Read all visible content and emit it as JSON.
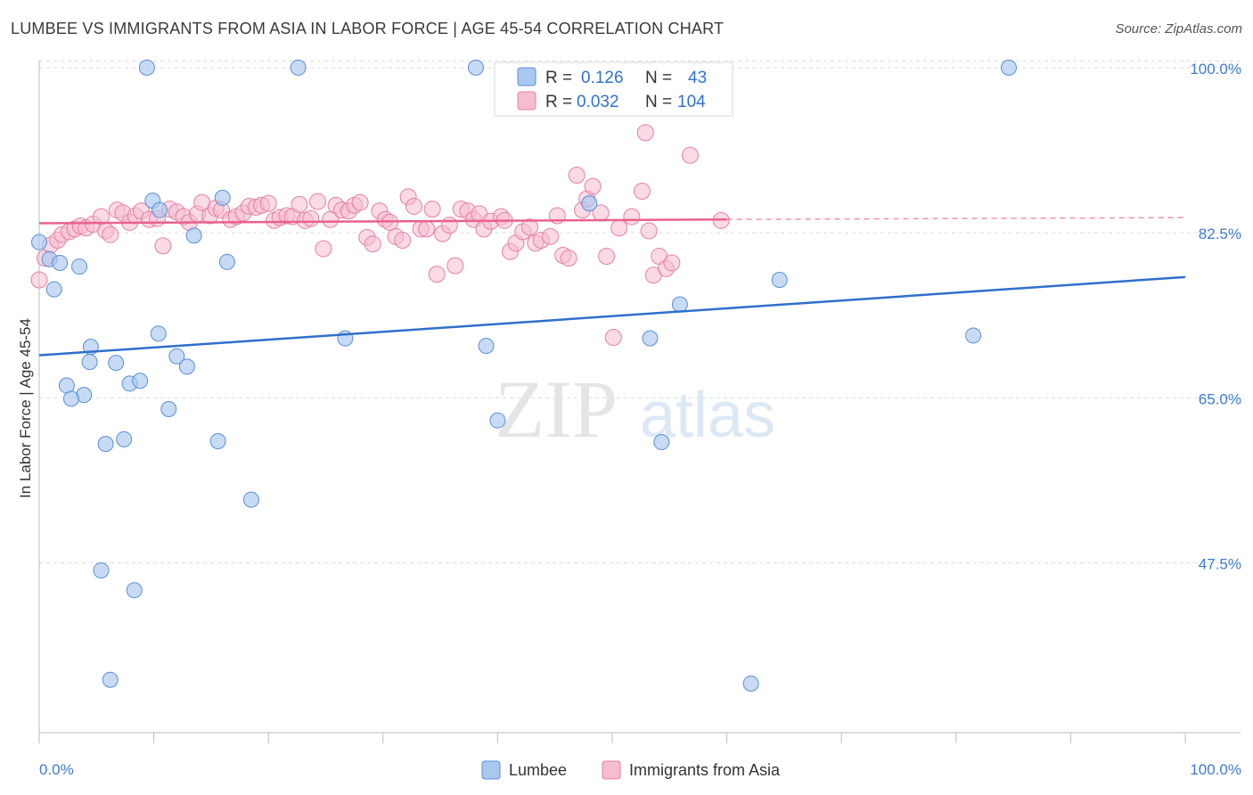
{
  "title": "LUMBEE VS IMMIGRANTS FROM ASIA IN LABOR FORCE | AGE 45-54 CORRELATION CHART",
  "source": "Source: ZipAtlas.com",
  "watermark": {
    "zip": "ZIP",
    "atlas": "atlas"
  },
  "colors": {
    "lumbee_fill": "#a9c8f0",
    "lumbee_stroke": "#5b8fd6",
    "lumbee_line": "#2f6fcc",
    "asia_fill": "#f6bcd0",
    "asia_stroke": "#e57fa3",
    "asia_line": "#e8628e",
    "grid": "#d9dde3",
    "axis_text": "#3d7bd0"
  },
  "legend": {
    "r_label": "R =",
    "n_label": "N =",
    "rows": [
      {
        "r": "0.126",
        "n": "43"
      },
      {
        "r": "0.032",
        "n": "104"
      }
    ]
  },
  "chart_data": {
    "type": "scatter",
    "xlabel": "",
    "ylabel": "In Labor Force | Age 45-54",
    "xlim": [
      0,
      100
    ],
    "ylim": [
      29.5,
      101.5
    ],
    "x_tick_labels": [
      "0.0%",
      "100.0%"
    ],
    "y_ticks": [
      47.5,
      65.0,
      82.5,
      100.0
    ],
    "y_tick_labels": [
      "47.5%",
      "65.0%",
      "82.5%",
      "100.0%"
    ],
    "series": [
      {
        "name": "Lumbee",
        "trend": {
          "x": [
            0,
            100
          ],
          "y": [
            69.5,
            77.8
          ]
        },
        "points": [
          [
            0.0,
            81.5
          ],
          [
            0.9,
            79.7
          ],
          [
            1.8,
            79.3
          ],
          [
            1.3,
            76.5
          ],
          [
            3.5,
            78.9
          ],
          [
            9.4,
            100.0
          ],
          [
            22.6,
            100.0
          ],
          [
            38.1,
            100.0
          ],
          [
            84.6,
            100.0
          ],
          [
            9.9,
            85.9
          ],
          [
            10.5,
            84.9
          ],
          [
            16.0,
            86.2
          ],
          [
            13.5,
            82.2
          ],
          [
            16.4,
            79.4
          ],
          [
            48.0,
            85.6
          ],
          [
            64.6,
            77.5
          ],
          [
            55.9,
            74.9
          ],
          [
            10.4,
            71.8
          ],
          [
            4.5,
            70.4
          ],
          [
            4.4,
            68.8
          ],
          [
            6.7,
            68.7
          ],
          [
            12.0,
            69.4
          ],
          [
            12.9,
            68.3
          ],
          [
            26.7,
            71.3
          ],
          [
            2.4,
            66.3
          ],
          [
            7.9,
            66.5
          ],
          [
            8.8,
            66.8
          ],
          [
            3.9,
            65.3
          ],
          [
            2.8,
            64.9
          ],
          [
            11.3,
            63.8
          ],
          [
            40.0,
            62.6
          ],
          [
            5.8,
            60.1
          ],
          [
            7.4,
            60.6
          ],
          [
            15.6,
            60.4
          ],
          [
            54.3,
            60.3
          ],
          [
            53.3,
            71.3
          ],
          [
            39.0,
            70.5
          ],
          [
            81.5,
            71.6
          ],
          [
            18.5,
            54.2
          ],
          [
            5.4,
            46.7
          ],
          [
            8.3,
            44.6
          ],
          [
            6.2,
            35.1
          ],
          [
            62.1,
            34.7
          ]
        ]
      },
      {
        "name": "Immigrants from Asia",
        "trend": {
          "x": [
            0,
            60
          ],
          "y": [
            83.5,
            83.9
          ]
        },
        "trend_dashed": {
          "x": [
            60,
            100
          ],
          "y": [
            83.9,
            84.1
          ]
        },
        "points": [
          [
            0.0,
            77.5
          ],
          [
            0.5,
            79.8
          ],
          [
            1.0,
            81.2
          ],
          [
            1.6,
            81.7
          ],
          [
            2.0,
            82.3
          ],
          [
            2.6,
            82.6
          ],
          [
            3.1,
            82.9
          ],
          [
            3.6,
            83.2
          ],
          [
            4.1,
            83.0
          ],
          [
            4.7,
            83.4
          ],
          [
            5.4,
            84.2
          ],
          [
            5.8,
            82.7
          ],
          [
            6.2,
            82.3
          ],
          [
            6.8,
            84.9
          ],
          [
            7.3,
            84.6
          ],
          [
            7.9,
            83.6
          ],
          [
            8.4,
            84.3
          ],
          [
            8.9,
            84.8
          ],
          [
            9.6,
            83.9
          ],
          [
            10.3,
            84.0
          ],
          [
            10.8,
            81.1
          ],
          [
            11.4,
            85.0
          ],
          [
            12.0,
            84.7
          ],
          [
            12.6,
            84.2
          ],
          [
            13.1,
            83.6
          ],
          [
            13.8,
            84.5
          ],
          [
            14.2,
            85.7
          ],
          [
            14.9,
            84.3
          ],
          [
            15.4,
            85.1
          ],
          [
            15.9,
            84.9
          ],
          [
            16.7,
            83.9
          ],
          [
            17.2,
            84.2
          ],
          [
            17.8,
            84.6
          ],
          [
            18.3,
            85.3
          ],
          [
            18.9,
            85.2
          ],
          [
            19.4,
            85.4
          ],
          [
            20.0,
            85.6
          ],
          [
            20.5,
            83.8
          ],
          [
            21.0,
            84.1
          ],
          [
            21.6,
            84.3
          ],
          [
            22.1,
            84.2
          ],
          [
            22.7,
            85.5
          ],
          [
            23.2,
            83.8
          ],
          [
            23.7,
            84.0
          ],
          [
            24.3,
            85.8
          ],
          [
            24.8,
            80.8
          ],
          [
            25.4,
            83.9
          ],
          [
            25.9,
            85.4
          ],
          [
            26.4,
            84.9
          ],
          [
            27.0,
            84.8
          ],
          [
            27.5,
            85.4
          ],
          [
            28.0,
            85.7
          ],
          [
            28.6,
            82.0
          ],
          [
            29.1,
            81.3
          ],
          [
            29.7,
            84.8
          ],
          [
            30.2,
            83.9
          ],
          [
            30.6,
            83.6
          ],
          [
            31.1,
            82.1
          ],
          [
            31.7,
            81.7
          ],
          [
            32.2,
            86.3
          ],
          [
            32.7,
            85.3
          ],
          [
            33.3,
            82.9
          ],
          [
            33.8,
            82.9
          ],
          [
            34.3,
            85.0
          ],
          [
            34.7,
            78.1
          ],
          [
            35.2,
            82.4
          ],
          [
            35.8,
            83.3
          ],
          [
            36.3,
            79.0
          ],
          [
            36.8,
            85.0
          ],
          [
            37.4,
            84.8
          ],
          [
            37.9,
            83.9
          ],
          [
            38.4,
            84.5
          ],
          [
            38.8,
            82.9
          ],
          [
            39.4,
            83.7
          ],
          [
            40.3,
            84.2
          ],
          [
            40.6,
            83.8
          ],
          [
            41.1,
            80.5
          ],
          [
            41.6,
            81.4
          ],
          [
            42.2,
            82.6
          ],
          [
            42.8,
            83.1
          ],
          [
            43.3,
            81.4
          ],
          [
            43.8,
            81.7
          ],
          [
            44.6,
            82.1
          ],
          [
            45.2,
            84.3
          ],
          [
            45.7,
            80.1
          ],
          [
            46.2,
            79.8
          ],
          [
            46.9,
            88.6
          ],
          [
            47.4,
            84.9
          ],
          [
            47.8,
            86.1
          ],
          [
            48.3,
            87.4
          ],
          [
            49.0,
            84.6
          ],
          [
            49.5,
            80.0
          ],
          [
            50.1,
            71.4
          ],
          [
            50.6,
            83.0
          ],
          [
            51.7,
            84.2
          ],
          [
            52.6,
            86.9
          ],
          [
            52.9,
            93.1
          ],
          [
            53.2,
            82.7
          ],
          [
            53.6,
            78.0
          ],
          [
            54.1,
            80.0
          ],
          [
            54.7,
            78.7
          ],
          [
            55.2,
            79.3
          ],
          [
            56.8,
            90.7
          ],
          [
            59.5,
            83.8
          ]
        ]
      }
    ]
  },
  "bottom_legend": [
    {
      "label": "Lumbee"
    },
    {
      "label": "Immigrants from Asia"
    }
  ]
}
